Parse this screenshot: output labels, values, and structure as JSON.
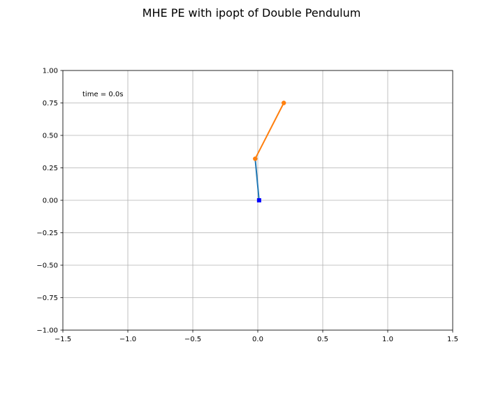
{
  "chart_data": {
    "type": "line",
    "title": "MHE PE with ipopt of Double Pendulum",
    "xlabel": "",
    "ylabel": "",
    "xlim": [
      -1.5,
      1.5
    ],
    "ylim": [
      -1.0,
      1.0
    ],
    "xticks": [
      -1.5,
      -1.0,
      -0.5,
      0.0,
      0.5,
      1.0,
      1.5
    ],
    "xtick_labels": [
      "−1.5",
      "−1.0",
      "−0.5",
      "0.0",
      "0.5",
      "1.0",
      "1.5"
    ],
    "yticks": [
      1.0,
      0.75,
      0.5,
      0.25,
      0.0,
      -0.25,
      -0.5,
      -0.75,
      -1.0
    ],
    "ytick_labels": [
      "1.00",
      "0.75",
      "0.50",
      "0.25",
      "0.00",
      "−0.25",
      "−0.50",
      "−0.75",
      "−1.00"
    ],
    "grid": true,
    "annotation": "time = 0.0s",
    "series": [
      {
        "color": "#1f77b4",
        "marker": "none",
        "x": [
          0.01,
          -0.02
        ],
        "y": [
          0.0,
          0.32
        ]
      },
      {
        "color": "#ff7f0e",
        "marker": "circle",
        "x": [
          -0.02,
          0.2
        ],
        "y": [
          0.32,
          0.75
        ]
      }
    ],
    "pivot": {
      "x": 0.01,
      "y": 0.0,
      "color": "#0000ff",
      "marker": "square"
    }
  }
}
